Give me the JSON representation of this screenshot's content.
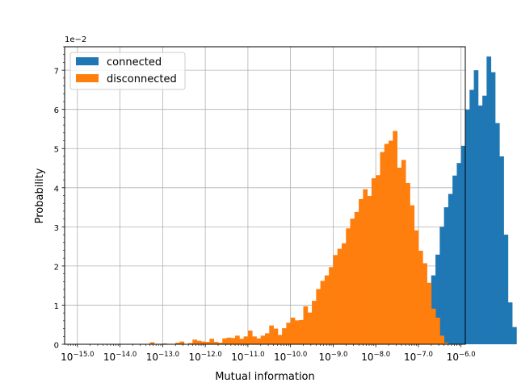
{
  "chart_data": {
    "type": "bar",
    "title": "",
    "xlabel": "Mutual information",
    "ylabel": "Probability",
    "y_offset_label": "1e−2",
    "x_scale": "log10",
    "xlim_log10": [
      -15.3,
      -5.9
    ],
    "ylim": [
      0,
      7.6
    ],
    "y_scale_factor": 0.01,
    "grid": true,
    "legend_position": "upper-left",
    "x_tick_exponents": [
      "−15.0",
      "−14.0",
      "−13.0",
      "−12.0",
      "−11.0",
      "−10.0",
      "−9.0",
      "−8.0",
      "−7.0",
      "−6.0"
    ],
    "x_tick_values_log10": [
      -15,
      -14,
      -13,
      -12,
      -11,
      -10,
      -9,
      -8,
      -7,
      -6
    ],
    "y_ticks": [
      0,
      1,
      2,
      3,
      4,
      5,
      6,
      7
    ],
    "bin_width_log10": 0.1,
    "series": [
      {
        "name": "connected",
        "color": "#1f77b4",
        "bin_start_log10": -8.0,
        "values": [
          0.01,
          0.02,
          0.03,
          0.06,
          0.1,
          0.16,
          0.27,
          0.4,
          0.55,
          0.75,
          1.0,
          1.15,
          1.45,
          1.76,
          2.29,
          3.0,
          3.5,
          3.84,
          4.31,
          4.63,
          5.07,
          6.0,
          6.5,
          7.0,
          6.1,
          6.35,
          7.35,
          6.95,
          5.65,
          4.8,
          2.8,
          1.07,
          0.44
        ]
      },
      {
        "name": "disconnected",
        "color": "#ff7f0e",
        "bin_start_log10": -13.3,
        "values": [
          0.05,
          0.0,
          0.0,
          0.02,
          0.0,
          0.0,
          0.04,
          0.07,
          0.0,
          0.03,
          0.12,
          0.09,
          0.07,
          0.06,
          0.14,
          0.06,
          0.04,
          0.15,
          0.17,
          0.16,
          0.22,
          0.14,
          0.2,
          0.35,
          0.2,
          0.15,
          0.22,
          0.28,
          0.48,
          0.4,
          0.24,
          0.41,
          0.55,
          0.68,
          0.61,
          0.62,
          0.97,
          0.81,
          1.11,
          1.41,
          1.62,
          1.76,
          1.97,
          2.28,
          2.44,
          2.58,
          2.96,
          3.21,
          3.38,
          3.71,
          3.96,
          3.79,
          4.24,
          4.32,
          4.91,
          5.12,
          5.2,
          5.45,
          4.51,
          4.71,
          4.12,
          3.55,
          2.91,
          2.39,
          2.07,
          1.57,
          0.91,
          0.68,
          0.22,
          0.04
        ]
      }
    ]
  }
}
